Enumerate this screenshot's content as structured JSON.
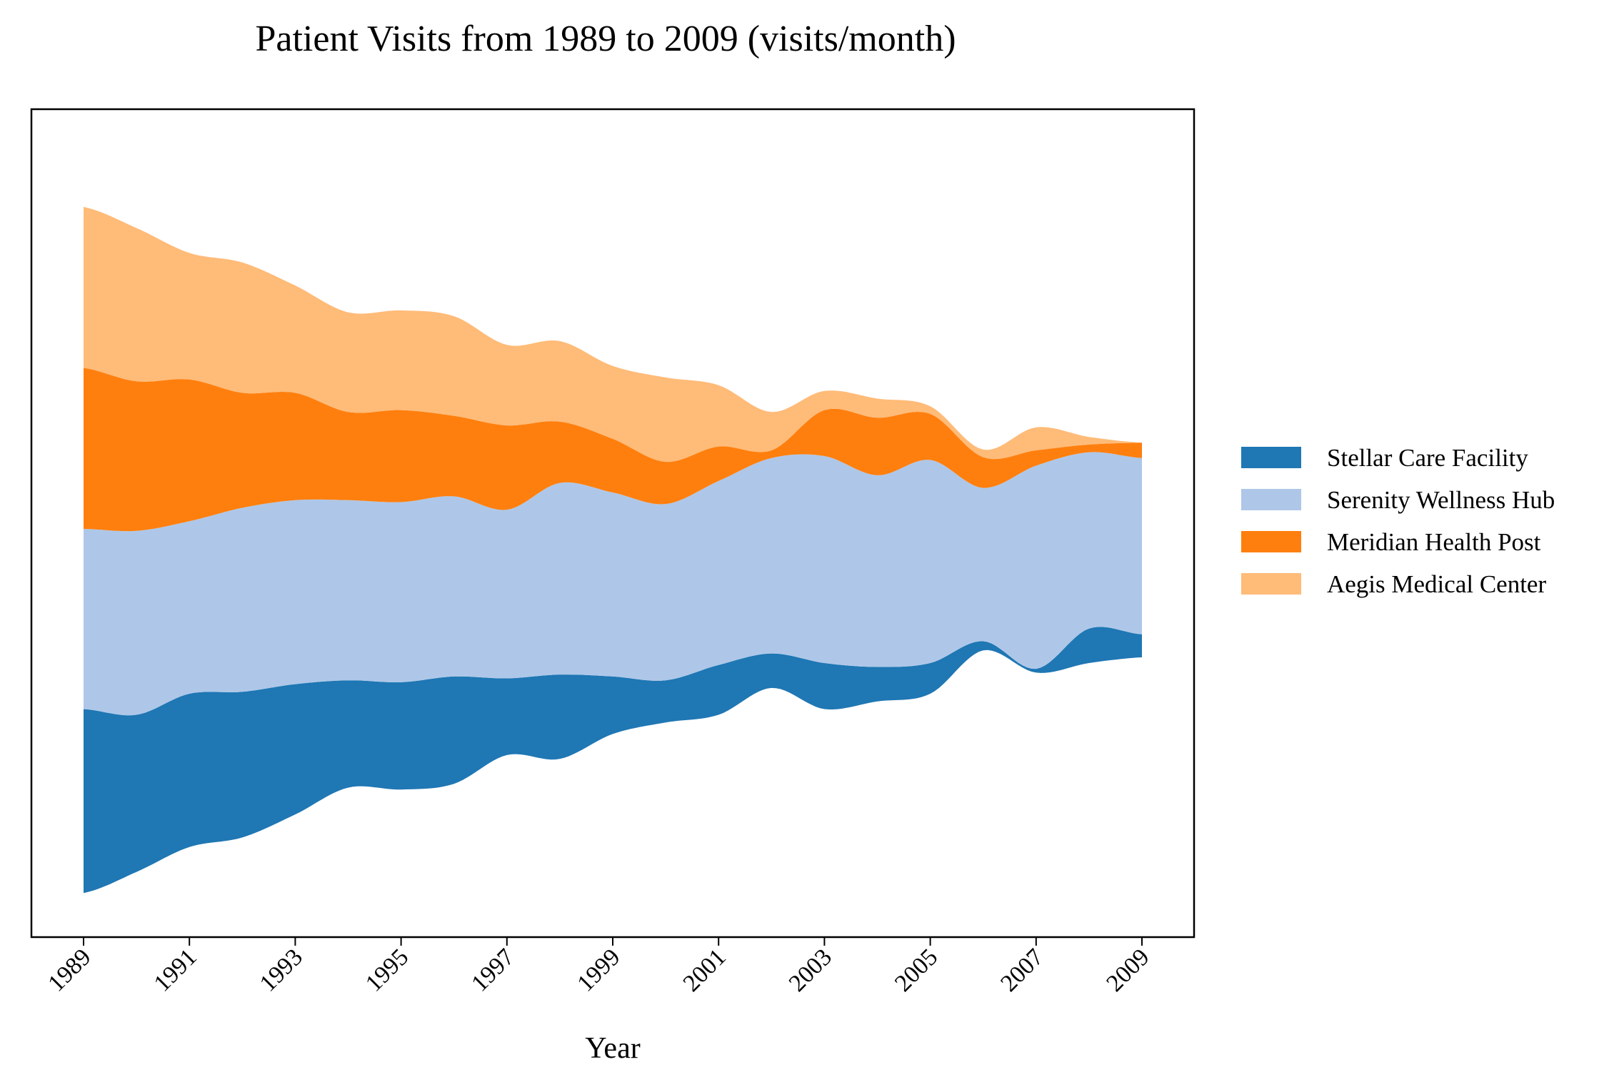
{
  "chart_data": {
    "type": "area",
    "subtype": "streamgraph",
    "title": "Patient Visits from 1989 to 2009 (visits/month)",
    "xlabel": "Year",
    "ylabel": "",
    "x": [
      1989,
      1990,
      1991,
      1992,
      1993,
      1994,
      1995,
      1996,
      1997,
      1998,
      1999,
      2000,
      2001,
      2002,
      2003,
      2004,
      2005,
      2006,
      2007,
      2008,
      2009
    ],
    "xticks": [
      "1989",
      "1991",
      "1993",
      "1995",
      "1997",
      "1999",
      "2001",
      "2003",
      "2005",
      "2007",
      "2009"
    ],
    "yticks_visible": false,
    "grid": false,
    "legend_position": "right",
    "series": [
      {
        "name": "Stellar Care Facility",
        "color": "#1f77b4",
        "values": [
          240,
          205,
          200,
          190,
          170,
          140,
          140,
          140,
          100,
          110,
          75,
          55,
          65,
          45,
          60,
          45,
          40,
          12,
          5,
          45,
          30
        ]
      },
      {
        "name": "Serenity Wellness Hub",
        "color": "#aec7e8",
        "values": [
          235,
          240,
          225,
          240,
          240,
          235,
          235,
          235,
          220,
          250,
          240,
          230,
          240,
          255,
          270,
          250,
          265,
          200,
          265,
          230,
          230
        ]
      },
      {
        "name": "Meridian Health Post",
        "color": "#ff7f0e",
        "values": [
          210,
          195,
          185,
          150,
          140,
          115,
          120,
          105,
          110,
          80,
          70,
          55,
          45,
          10,
          60,
          75,
          60,
          40,
          20,
          10,
          20
        ]
      },
      {
        "name": "Aegis Medical Center",
        "color": "#ffbb78",
        "values": [
          210,
          200,
          165,
          170,
          140,
          130,
          130,
          130,
          105,
          105,
          95,
          110,
          80,
          50,
          25,
          25,
          10,
          10,
          30,
          10,
          0
        ]
      }
    ],
    "ylim": [
      -505,
      575
    ]
  }
}
